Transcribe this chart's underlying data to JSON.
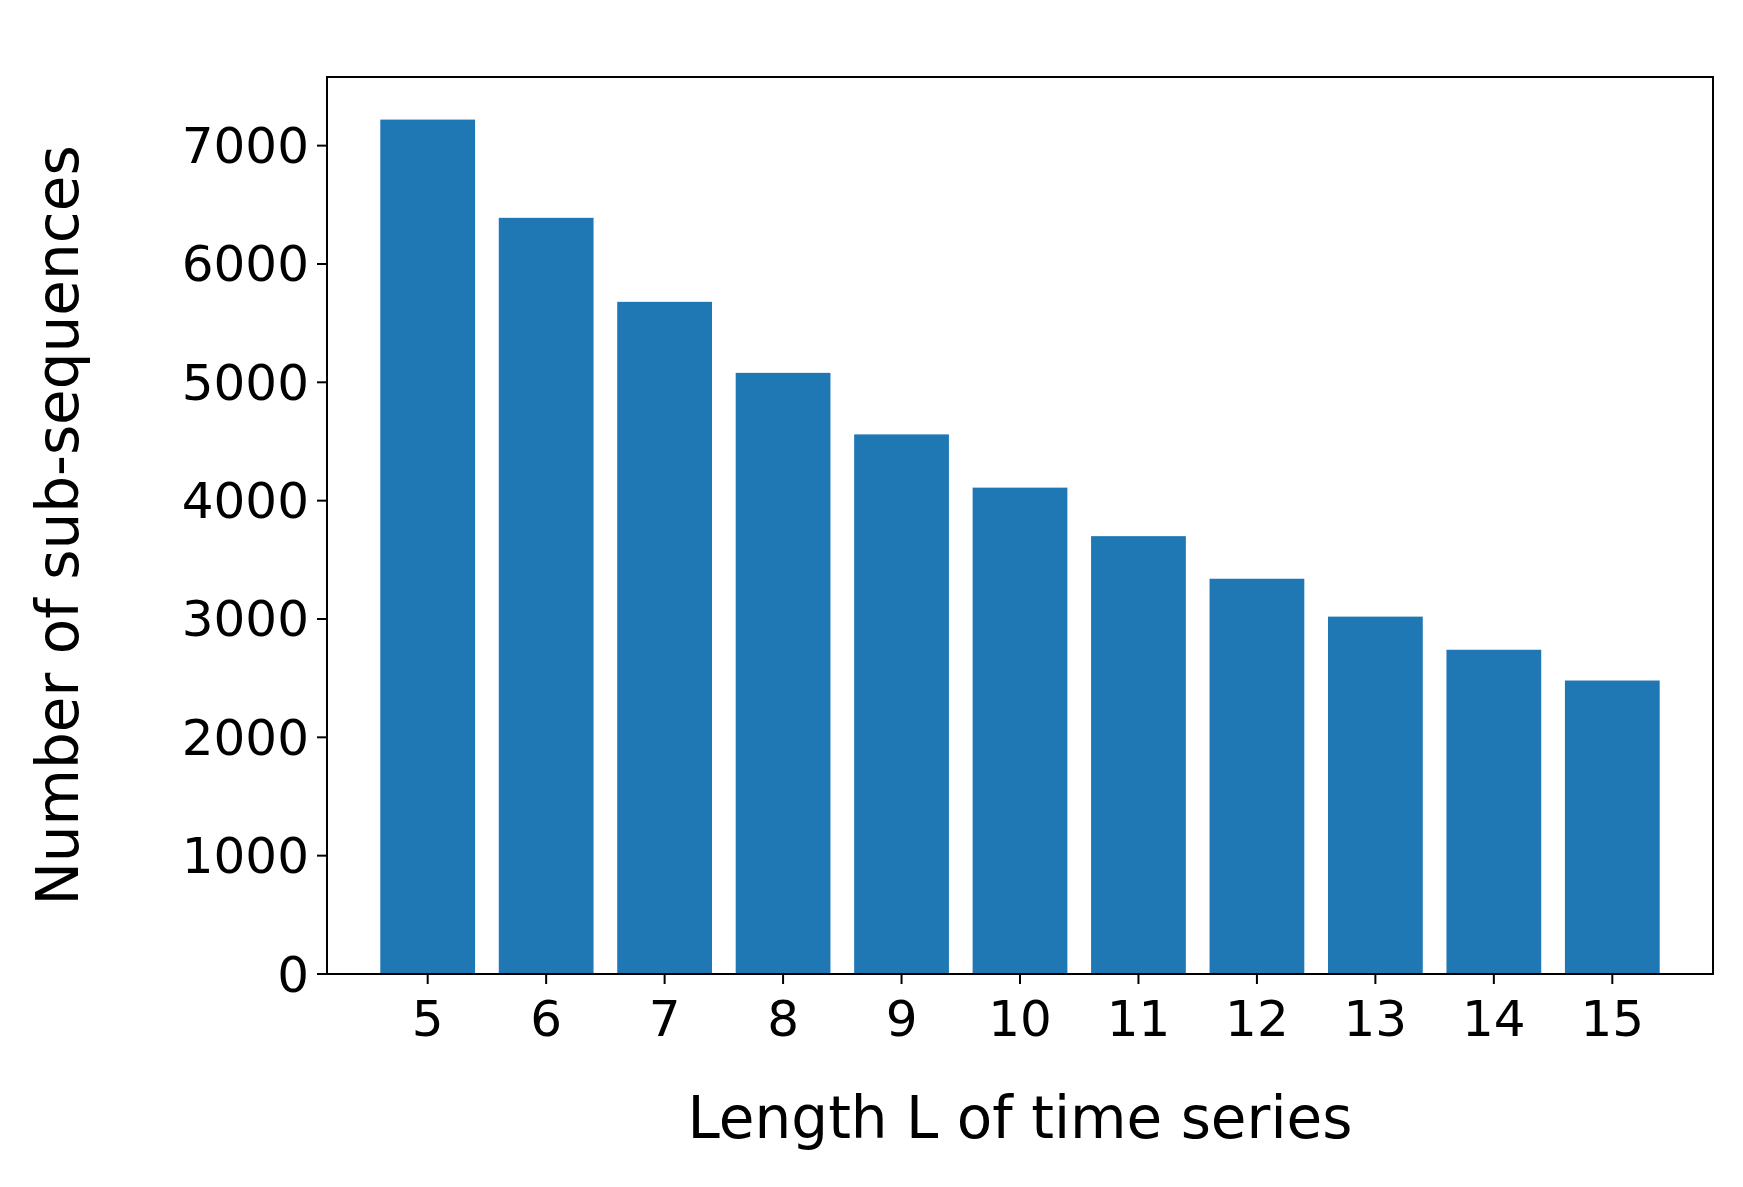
{
  "chart_data": {
    "type": "bar",
    "xlabel": "Length L of time series",
    "ylabel": "Number of sub-sequences",
    "categories": [
      "5",
      "6",
      "7",
      "8",
      "9",
      "10",
      "11",
      "12",
      "13",
      "14",
      "15"
    ],
    "values": [
      7220,
      6390,
      5680,
      5080,
      4560,
      4110,
      3700,
      3340,
      3020,
      2740,
      2480
    ],
    "color": "#1f77b4",
    "ylim": [
      0,
      7580
    ],
    "yticks": [
      0,
      1000,
      2000,
      3000,
      4000,
      5000,
      6000,
      7000
    ],
    "grid": false
  }
}
